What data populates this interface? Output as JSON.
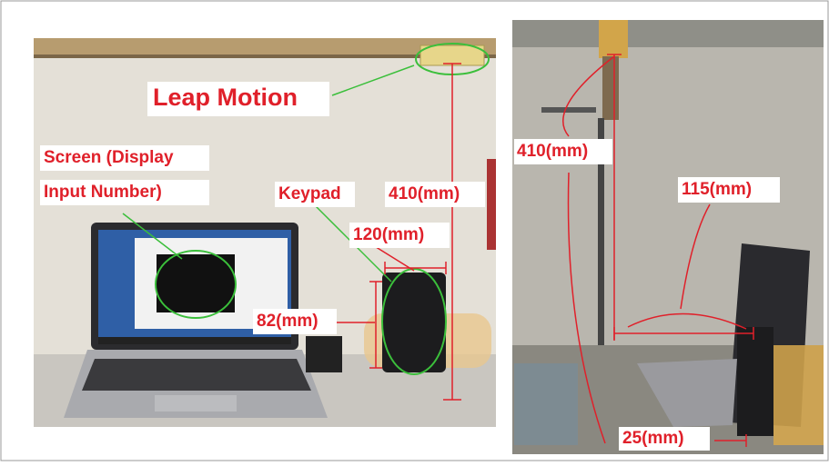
{
  "left_photo": {
    "labels": {
      "leap_motion": "Leap Motion",
      "screen_line1": "Screen (Display",
      "screen_line2": "Input Number)",
      "keypad": "Keypad",
      "height": "410(mm)",
      "keypad_width": "120(mm)",
      "keypad_depth": "82(mm)"
    }
  },
  "right_photo": {
    "labels": {
      "height": "410(mm)",
      "distance": "115(mm)",
      "offset": "25(mm)"
    }
  }
}
